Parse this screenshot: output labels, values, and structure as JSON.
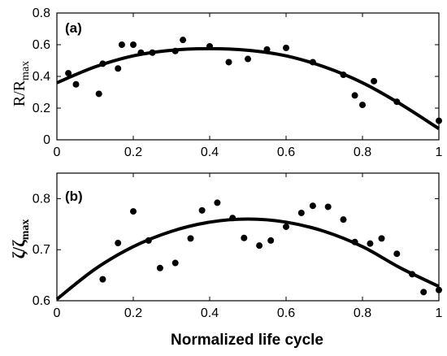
{
  "chart_data": [
    {
      "type": "scatter",
      "panel_label": "(a)",
      "ylabel": {
        "main": "R/R",
        "sub": "max"
      },
      "xlim": [
        0,
        1
      ],
      "ylim": [
        0,
        0.8
      ],
      "xticks": [
        "0",
        "0.2",
        "0.4",
        "0.6",
        "0.8",
        "1"
      ],
      "yticks": [
        "0",
        "0.2",
        "0.4",
        "0.6",
        "0.8"
      ],
      "series": [
        {
          "kind": "scatter",
          "points": [
            [
              0.03,
              0.42
            ],
            [
              0.05,
              0.35
            ],
            [
              0.11,
              0.29
            ],
            [
              0.12,
              0.48
            ],
            [
              0.16,
              0.45
            ],
            [
              0.17,
              0.6
            ],
            [
              0.2,
              0.6
            ],
            [
              0.22,
              0.55
            ],
            [
              0.25,
              0.55
            ],
            [
              0.31,
              0.56
            ],
            [
              0.33,
              0.63
            ],
            [
              0.4,
              0.59
            ],
            [
              0.45,
              0.49
            ],
            [
              0.5,
              0.51
            ],
            [
              0.55,
              0.57
            ],
            [
              0.6,
              0.58
            ],
            [
              0.67,
              0.49
            ],
            [
              0.75,
              0.41
            ],
            [
              0.78,
              0.28
            ],
            [
              0.8,
              0.22
            ],
            [
              0.83,
              0.37
            ],
            [
              0.89,
              0.24
            ],
            [
              1.0,
              0.12
            ]
          ]
        },
        {
          "kind": "fit",
          "points": [
            [
              0,
              0.36
            ],
            [
              0.1,
              0.46
            ],
            [
              0.2,
              0.53
            ],
            [
              0.3,
              0.565
            ],
            [
              0.4,
              0.575
            ],
            [
              0.5,
              0.565
            ],
            [
              0.6,
              0.53
            ],
            [
              0.7,
              0.46
            ],
            [
              0.8,
              0.36
            ],
            [
              0.9,
              0.225
            ],
            [
              1.0,
              0.07
            ]
          ]
        }
      ]
    },
    {
      "type": "scatter",
      "panel_label": "(b)",
      "ylabel": {
        "main": "ζ/ζ",
        "sub": "max"
      },
      "xlim": [
        0,
        1
      ],
      "ylim": [
        0.6,
        0.85
      ],
      "xticks": [
        "0",
        "0.2",
        "0.4",
        "0.6",
        "0.8",
        "1"
      ],
      "yticks": [
        "0.6",
        "0.7",
        "0.8"
      ],
      "series": [
        {
          "kind": "scatter",
          "points": [
            [
              0.12,
              0.642
            ],
            [
              0.16,
              0.713
            ],
            [
              0.2,
              0.775
            ],
            [
              0.24,
              0.718
            ],
            [
              0.27,
              0.664
            ],
            [
              0.31,
              0.674
            ],
            [
              0.35,
              0.722
            ],
            [
              0.38,
              0.777
            ],
            [
              0.42,
              0.792
            ],
            [
              0.46,
              0.762
            ],
            [
              0.49,
              0.723
            ],
            [
              0.53,
              0.708
            ],
            [
              0.56,
              0.718
            ],
            [
              0.6,
              0.745
            ],
            [
              0.64,
              0.772
            ],
            [
              0.67,
              0.786
            ],
            [
              0.71,
              0.784
            ],
            [
              0.75,
              0.759
            ],
            [
              0.78,
              0.715
            ],
            [
              0.82,
              0.712
            ],
            [
              0.85,
              0.722
            ],
            [
              0.89,
              0.692
            ],
            [
              0.93,
              0.652
            ],
            [
              0.96,
              0.617
            ],
            [
              1.0,
              0.621
            ]
          ]
        },
        {
          "kind": "fit",
          "points": [
            [
              0,
              0.603
            ],
            [
              0.1,
              0.662
            ],
            [
              0.2,
              0.706
            ],
            [
              0.3,
              0.736
            ],
            [
              0.4,
              0.754
            ],
            [
              0.5,
              0.76
            ],
            [
              0.6,
              0.754
            ],
            [
              0.7,
              0.736
            ],
            [
              0.8,
              0.706
            ],
            [
              0.9,
              0.664
            ],
            [
              1.0,
              0.628
            ]
          ]
        }
      ]
    }
  ],
  "xlabel": "Normalized life cycle"
}
